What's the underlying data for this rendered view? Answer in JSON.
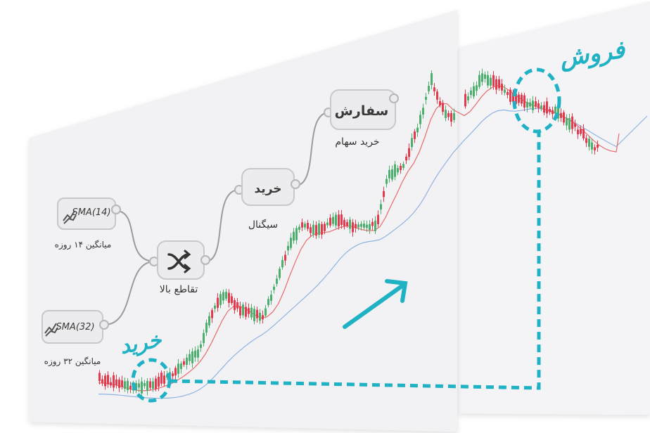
{
  "nodes": {
    "sma14": {
      "label": "SMA(14)",
      "caption": "میانگین ۱۴ روزه"
    },
    "sma32": {
      "label": "SMA(32)",
      "caption": "میانگین ۳۲ روزه"
    },
    "cross": {
      "caption": "تقاطع بالا"
    },
    "signal": {
      "label": "خرید",
      "caption": "سیگنال"
    },
    "order": {
      "label": "سفارش",
      "caption": "خرید سهام"
    }
  },
  "callouts": {
    "buy": "خرید",
    "sell": "فروش"
  },
  "icons": {
    "sma": "chart-line-icon",
    "cross": "shuffle-icon",
    "trend": "arrow-up-right-icon"
  },
  "colors": {
    "accent": "#1fb1c4",
    "bull": "#4caf6e",
    "bear": "#e5394d",
    "sma_fast": "#e86a6a",
    "sma_slow": "#8fb3e0",
    "node_bg": "#ececee",
    "panel": "#f3f3f6"
  }
}
